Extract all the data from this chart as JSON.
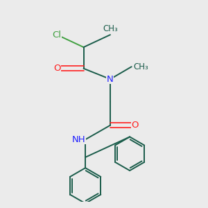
{
  "bg_color": "#ebebeb",
  "bond_color": "#1a5c4a",
  "N_color": "#2020ff",
  "O_color": "#ff2020",
  "Cl_color": "#40a040",
  "H_color": "#808080",
  "lw": 1.4,
  "dlw": 1.2,
  "figsize": [
    3.0,
    3.0
  ],
  "dpi": 100,
  "xlim": [
    -0.1,
    1.05
  ],
  "ylim": [
    -0.05,
    1.05
  ]
}
